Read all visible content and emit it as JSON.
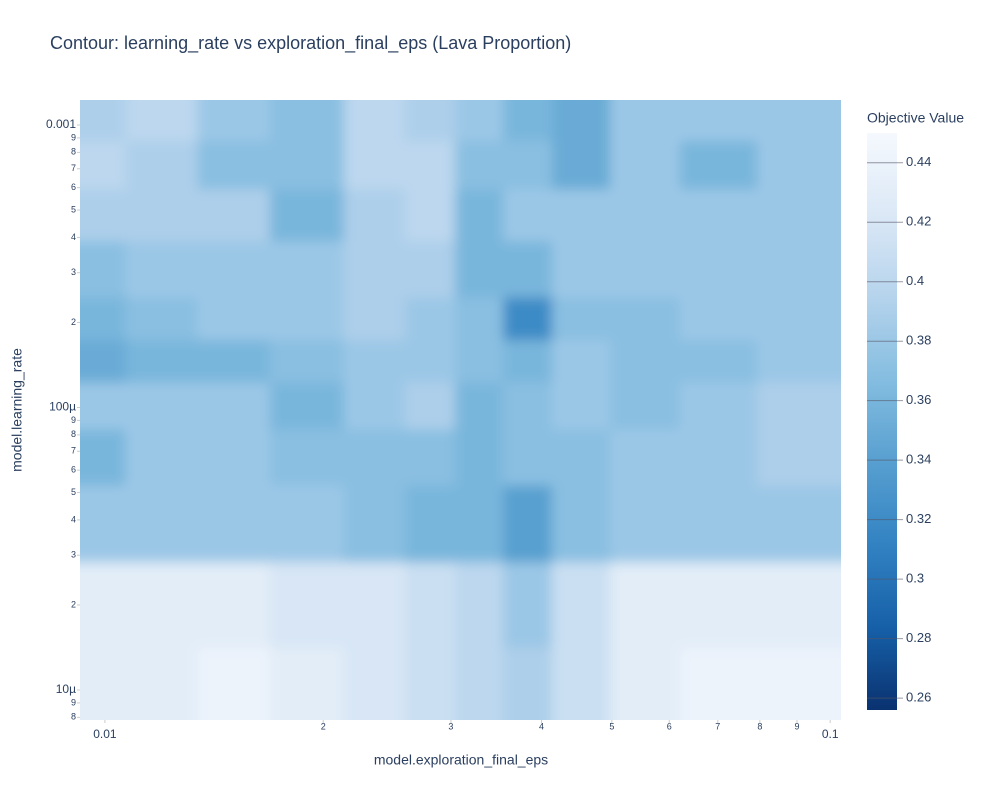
{
  "chart_data": {
    "type": "contour",
    "title": "Contour: learning_rate vs exploration_final_eps (Lava Proportion)",
    "x_label": "model.exploration_final_eps",
    "y_label": "model.learning_rate",
    "colorbar_title": "Objective Value",
    "x_log": true,
    "y_log": true,
    "xlim": [
      0.00924,
      0.1035
    ],
    "ylim": [
      7.83e-06,
      0.001226
    ],
    "xticks": [
      0.01,
      {
        "value": 0.02,
        "label": "2"
      },
      {
        "value": 0.03,
        "label": "3"
      },
      {
        "value": 0.04,
        "label": "4"
      },
      {
        "value": 0.05,
        "label": "5"
      },
      {
        "value": 0.06,
        "label": "6"
      },
      {
        "value": 0.07,
        "label": "7"
      },
      {
        "value": 0.08,
        "label": "8"
      },
      {
        "value": 0.09,
        "label": "9"
      },
      0.1
    ],
    "yticks": [
      0.001,
      {
        "value": 0.0009,
        "label": "9"
      },
      {
        "value": 0.0008,
        "label": "8"
      },
      {
        "value": 0.0007,
        "label": "7"
      },
      {
        "value": 0.0006,
        "label": "6"
      },
      {
        "value": 0.0005,
        "label": "5"
      },
      {
        "value": 0.0004,
        "label": "4"
      },
      {
        "value": 0.0003,
        "label": "3"
      },
      {
        "value": 0.0002,
        "label": "2"
      },
      {
        "value": 0.0001,
        "label": "100µ"
      },
      {
        "value": 9e-05,
        "label": "9"
      },
      {
        "value": 8e-05,
        "label": "8"
      },
      {
        "value": 7e-05,
        "label": "7"
      },
      {
        "value": 6e-05,
        "label": "6"
      },
      {
        "value": 5e-05,
        "label": "5"
      },
      {
        "value": 4e-05,
        "label": "4"
      },
      {
        "value": 3e-05,
        "label": "3"
      },
      {
        "value": 2e-05,
        "label": "2"
      },
      {
        "value": 1e-05,
        "label": "10µ"
      },
      {
        "value": 9e-06,
        "label": "9"
      },
      {
        "value": 8e-06,
        "label": "8"
      }
    ],
    "x": [
      0.0095,
      0.012,
      0.015,
      0.019,
      0.024,
      0.028,
      0.033,
      0.038,
      0.045,
      0.055,
      0.07,
      0.09
    ],
    "y": [
      0.0011,
      0.0007,
      0.0005,
      0.0003,
      0.0002,
      0.00015,
      0.0001,
      7e-05,
      4e-05,
      2e-05,
      1e-05
    ],
    "z": [
      [
        0.39,
        0.4,
        0.38,
        0.37,
        0.4,
        0.39,
        0.38,
        0.36,
        0.35,
        0.38,
        0.38,
        0.38
      ],
      [
        0.4,
        0.39,
        0.37,
        0.37,
        0.4,
        0.4,
        0.37,
        0.37,
        0.35,
        0.38,
        0.36,
        0.38
      ],
      [
        0.39,
        0.39,
        0.39,
        0.36,
        0.39,
        0.4,
        0.36,
        0.38,
        0.38,
        0.38,
        0.38,
        0.38
      ],
      [
        0.37,
        0.38,
        0.38,
        0.38,
        0.39,
        0.39,
        0.36,
        0.36,
        0.38,
        0.38,
        0.38,
        0.38
      ],
      [
        0.36,
        0.37,
        0.38,
        0.38,
        0.39,
        0.38,
        0.37,
        0.32,
        0.37,
        0.37,
        0.38,
        0.38
      ],
      [
        0.35,
        0.36,
        0.36,
        0.37,
        0.38,
        0.38,
        0.37,
        0.36,
        0.38,
        0.37,
        0.37,
        0.38
      ],
      [
        0.38,
        0.38,
        0.38,
        0.36,
        0.38,
        0.39,
        0.36,
        0.37,
        0.38,
        0.37,
        0.38,
        0.39
      ],
      [
        0.36,
        0.38,
        0.38,
        0.37,
        0.37,
        0.37,
        0.36,
        0.37,
        0.37,
        0.38,
        0.38,
        0.39
      ],
      [
        0.38,
        0.38,
        0.38,
        0.38,
        0.37,
        0.36,
        0.36,
        0.34,
        0.37,
        0.38,
        0.38,
        0.38
      ],
      [
        0.43,
        0.43,
        0.43,
        0.42,
        0.42,
        0.41,
        0.4,
        0.38,
        0.41,
        0.43,
        0.43,
        0.43
      ],
      [
        0.43,
        0.43,
        0.44,
        0.43,
        0.42,
        0.41,
        0.4,
        0.39,
        0.41,
        0.43,
        0.44,
        0.44
      ]
    ],
    "colorbar_lim": [
      0.256,
      0.45
    ],
    "colorbar_ticks": [
      0.26,
      0.28,
      0.3,
      0.32,
      0.34,
      0.36,
      0.38,
      0.4,
      0.42,
      0.44
    ],
    "colorscale": [
      "#0a3270",
      "#1660a8",
      "#3282c2",
      "#579fd0",
      "#84bde0",
      "#b5d3ec",
      "#dbe8f6",
      "#f5f9fe"
    ]
  }
}
